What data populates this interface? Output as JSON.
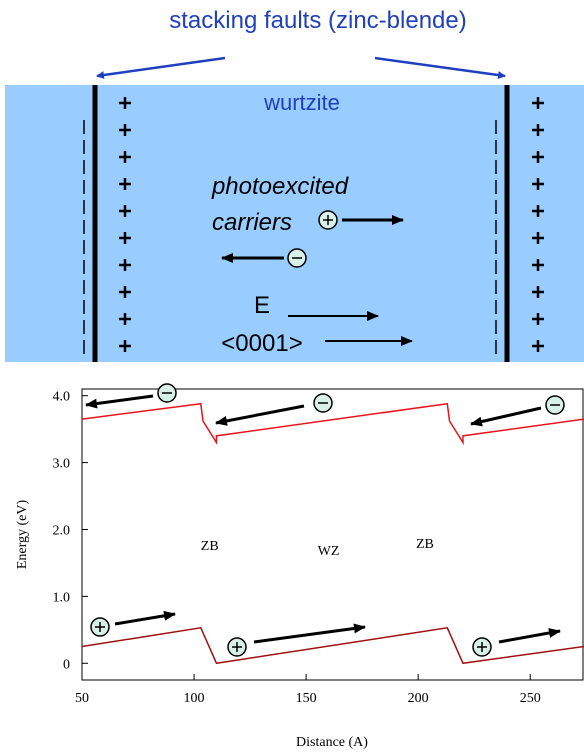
{
  "title": "stacking faults (zinc-blende)",
  "diagram": {
    "region_label": "wurtzite",
    "carriers_line1": "photoexcited",
    "carriers_line2": "carriers",
    "field_label": "E",
    "direction_label": "<0001>"
  },
  "chart_data": {
    "type": "line",
    "xlabel": "Distance (A)",
    "ylabel": "Energy (eV)",
    "annotations": [
      "ZB",
      "WZ",
      "ZB"
    ],
    "xlim": [
      50,
      274
    ],
    "ylim": [
      -0.25,
      4.1
    ],
    "xticks": [
      50,
      100,
      150,
      200,
      250
    ],
    "yticks": [
      0,
      {
        "value": 1,
        "label": "1.0"
      },
      {
        "value": 2,
        "label": "2.0"
      },
      {
        "value": 3,
        "label": "3.0"
      },
      {
        "value": 4,
        "label": "4.0"
      }
    ],
    "series": [
      {
        "color": "#e8141c",
        "x": [
          50,
          103,
          104,
          110,
          110,
          213,
          214,
          220,
          220,
          274
        ],
        "values": [
          3.65,
          3.88,
          3.62,
          3.3,
          3.4,
          3.88,
          3.62,
          3.3,
          3.4,
          3.65
        ]
      },
      {
        "color": "#a01010",
        "x": [
          50,
          103,
          110,
          213,
          220,
          274
        ],
        "values": [
          0.25,
          0.53,
          0,
          0.53,
          0,
          0.25
        ]
      }
    ]
  }
}
